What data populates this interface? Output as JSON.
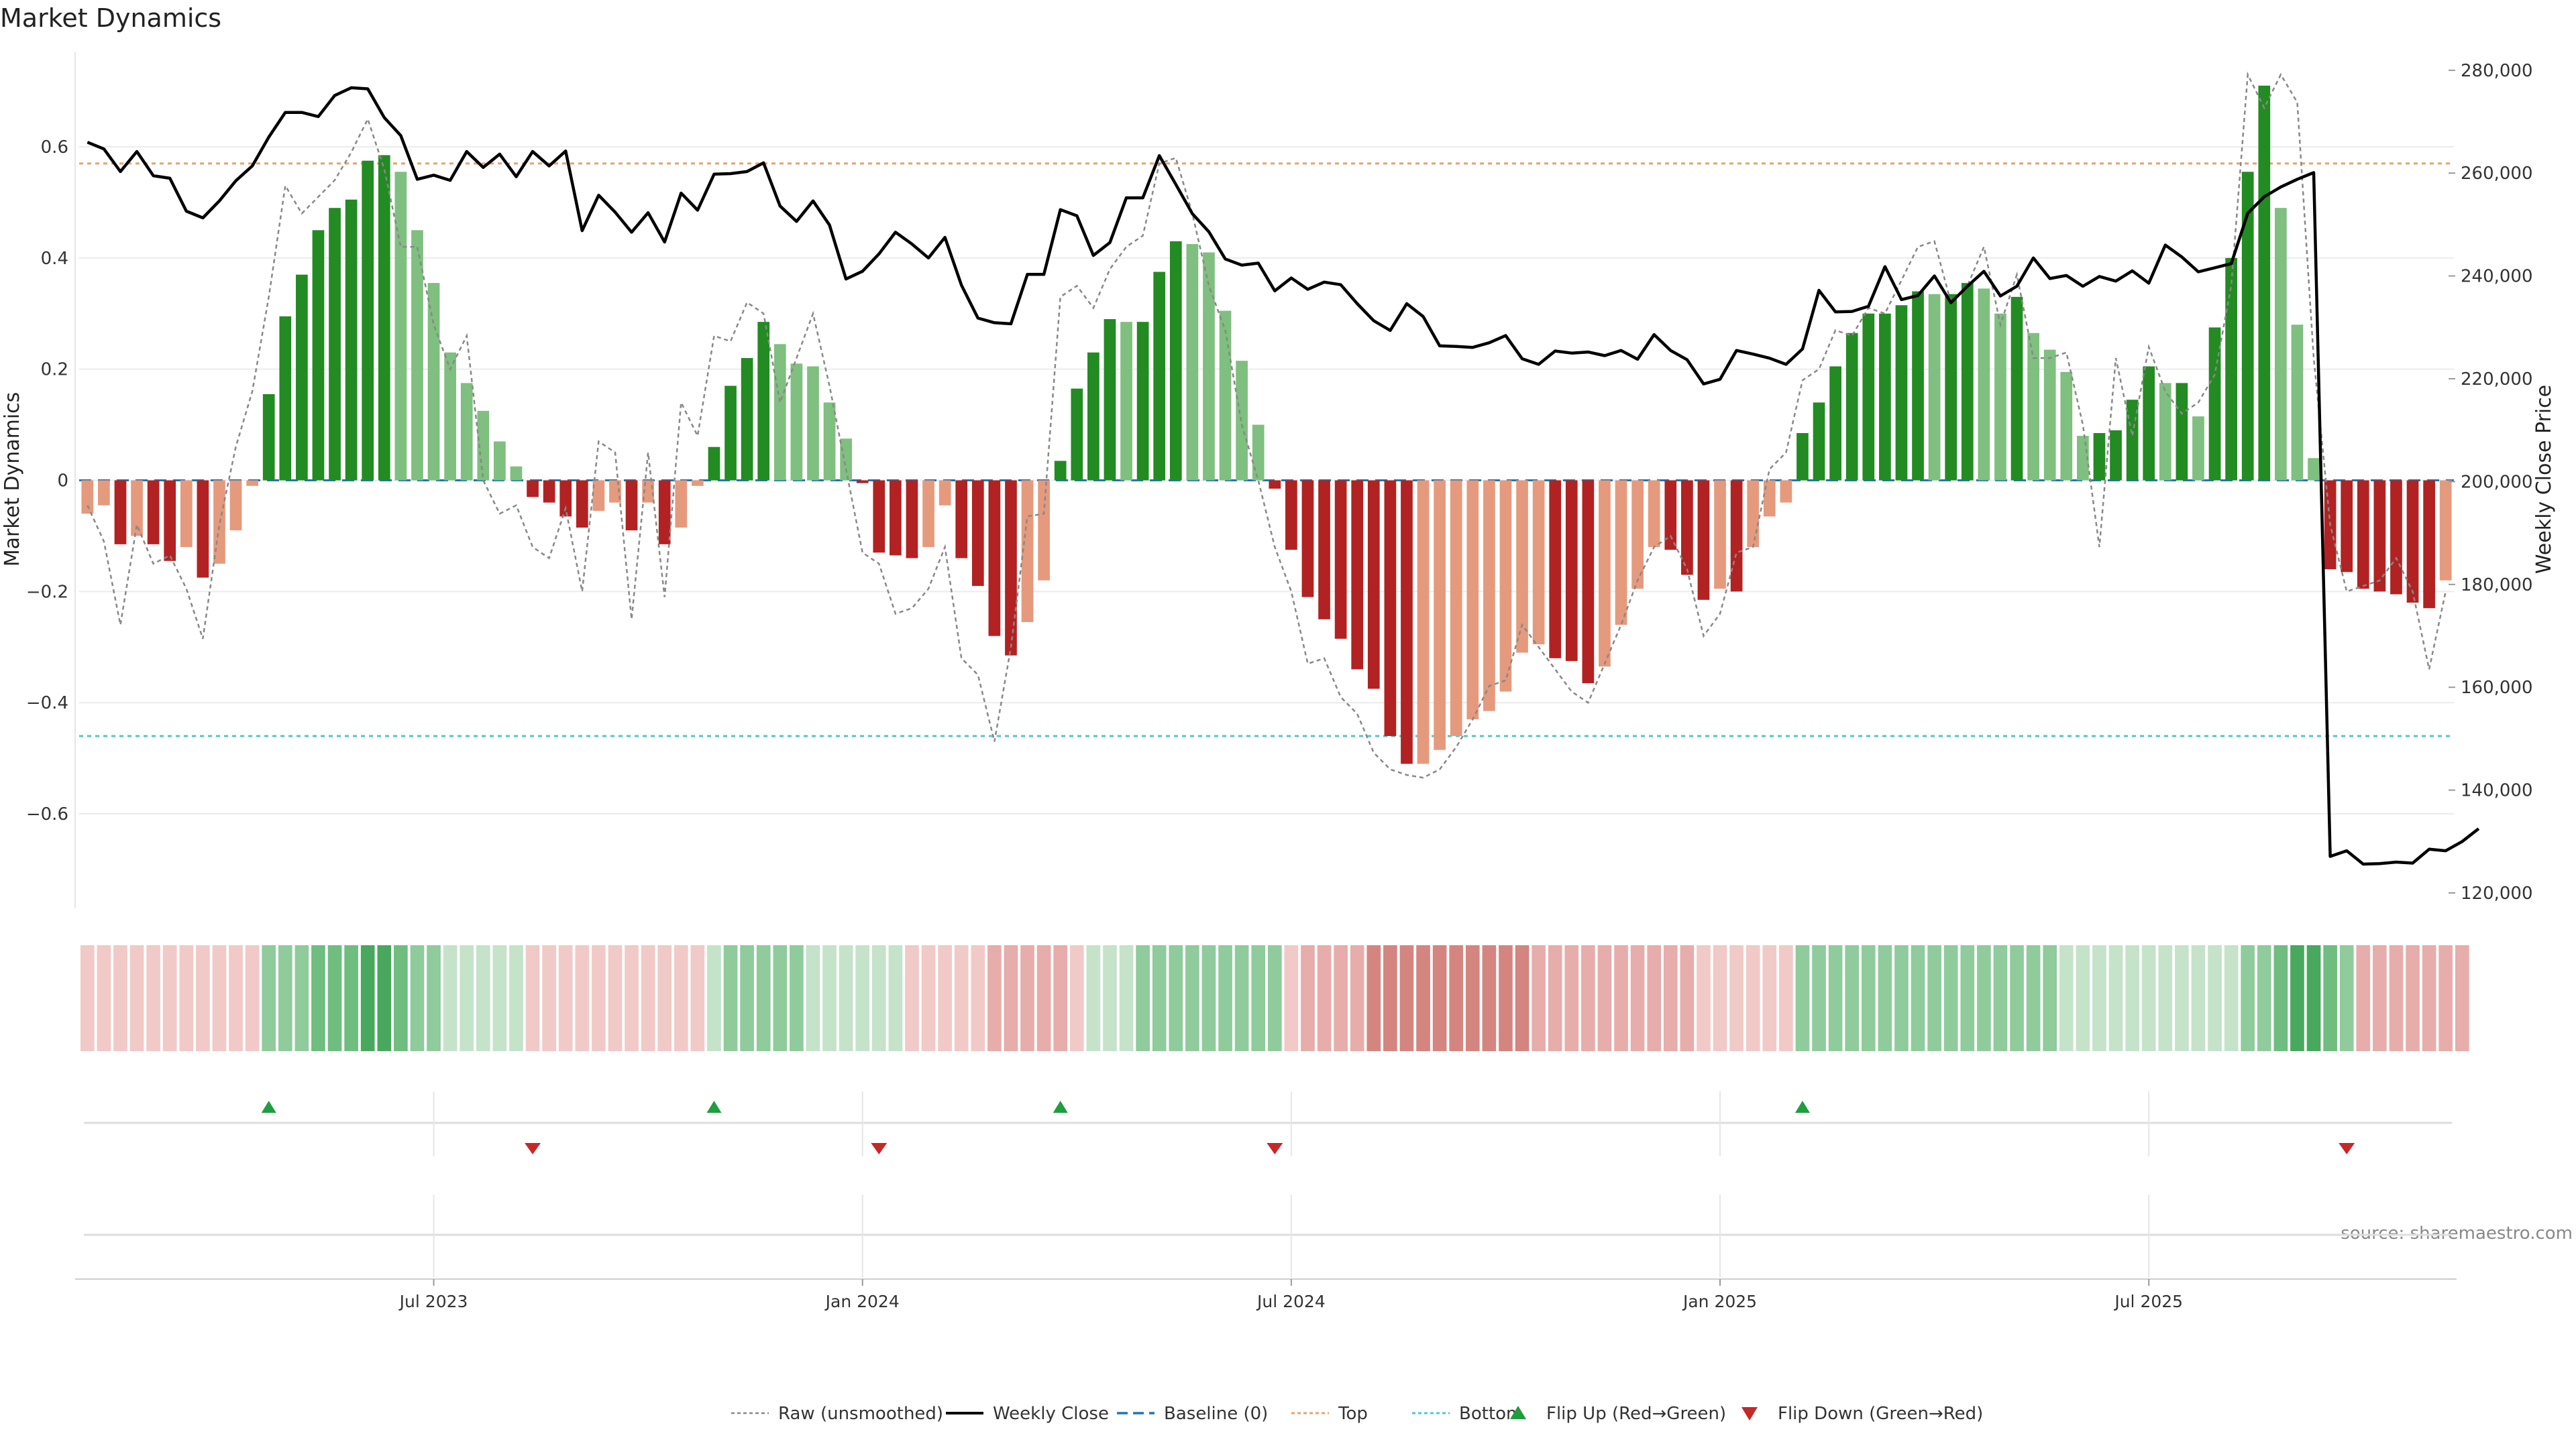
{
  "chart_data": {
    "type": "bar",
    "title": "Market Dynamics",
    "ylabel_left": "Market Dynamics",
    "ylabel_right": "Weekly Close Price",
    "source": "source: sharemaestro.com",
    "ylim_left": [
      -0.77,
      0.77
    ],
    "yticks_left": [
      {
        "v": 0.6,
        "label": "0.6"
      },
      {
        "v": 0.4,
        "label": "0.4"
      },
      {
        "v": 0.2,
        "label": "0.2"
      },
      {
        "v": 0,
        "label": "0"
      },
      {
        "v": -0.2,
        "label": "−0.2"
      },
      {
        "v": -0.4,
        "label": "−0.4"
      },
      {
        "v": -0.6,
        "label": "−0.6"
      }
    ],
    "ylim_right": [
      117000,
      283500
    ],
    "yticks_right": [
      {
        "v": 280000,
        "label": "280,000"
      },
      {
        "v": 260000,
        "label": "260,000"
      },
      {
        "v": 240000,
        "label": "240,000"
      },
      {
        "v": 220000,
        "label": "220,000"
      },
      {
        "v": 200000,
        "label": "200,000"
      },
      {
        "v": 180000,
        "label": "180,000"
      },
      {
        "v": 160000,
        "label": "160,000"
      },
      {
        "v": 140000,
        "label": "140,000"
      },
      {
        "v": 120000,
        "label": "120,000"
      }
    ],
    "x_ticks": [
      {
        "week": 21.5,
        "label": "Jul 2023"
      },
      {
        "week": 47.5,
        "label": "Jan 2024"
      },
      {
        "week": 73.5,
        "label": "Jul 2024"
      },
      {
        "week": 99.5,
        "label": "Jan 2025"
      },
      {
        "week": 125.5,
        "label": "Jul 2025"
      }
    ],
    "top_level": 0.57,
    "bottom_level": -0.46,
    "colors": {
      "strong_green": "#228b22",
      "light_green": "#7fbf7f",
      "strong_red": "#b22222",
      "light_red": "#e59a7d",
      "price": "#000000",
      "raw": "#888888",
      "baseline": "#1f77b4",
      "top": "#e3a36b",
      "bottom": "#4cc8c8",
      "flip_up": "#1e9e3e",
      "flip_down": "#c62828"
    },
    "series": [
      {
        "name": "Market Dynamics",
        "values": [
          -0.06,
          -0.045,
          -0.115,
          -0.1,
          -0.115,
          -0.145,
          -0.12,
          -0.175,
          -0.15,
          -0.09,
          -0.01,
          0.155,
          0.295,
          0.37,
          0.45,
          0.49,
          0.505,
          0.575,
          0.585,
          0.555,
          0.45,
          0.355,
          0.23,
          0.175,
          0.125,
          0.07,
          0.025,
          -0.03,
          -0.04,
          -0.065,
          -0.085,
          -0.055,
          -0.04,
          -0.09,
          -0.04,
          -0.115,
          -0.085,
          -0.01,
          0.06,
          0.17,
          0.22,
          0.285,
          0.245,
          0.21,
          0.205,
          0.14,
          0.075,
          -0.005,
          -0.13,
          -0.135,
          -0.14,
          -0.12,
          -0.045,
          -0.14,
          -0.19,
          -0.28,
          -0.315,
          -0.255,
          -0.18,
          0.035,
          0.165,
          0.23,
          0.29,
          0.285,
          0.285,
          0.375,
          0.43,
          0.425,
          0.41,
          0.305,
          0.215,
          0.1,
          -0.015,
          -0.125,
          -0.21,
          -0.25,
          -0.285,
          -0.34,
          -0.375,
          -0.46,
          -0.51,
          -0.51,
          -0.485,
          -0.46,
          -0.43,
          -0.415,
          -0.38,
          -0.31,
          -0.295,
          -0.32,
          -0.325,
          -0.365,
          -0.335,
          -0.26,
          -0.195,
          -0.12,
          -0.125,
          -0.17,
          -0.215,
          -0.195,
          -0.2,
          -0.12,
          -0.065,
          -0.04,
          0.085,
          0.14,
          0.205,
          0.265,
          0.3,
          0.3,
          0.315,
          0.34,
          0.335,
          0.335,
          0.355,
          0.345,
          0.3,
          0.33,
          0.265,
          0.235,
          0.195,
          0.08,
          0.085,
          0.09,
          0.145,
          0.205,
          0.175,
          0.175,
          0.115,
          0.275,
          0.4,
          0.555,
          0.71,
          0.49,
          0.28,
          0.04,
          -0.16,
          -0.165,
          -0.195,
          -0.2,
          -0.205,
          -0.22,
          -0.23,
          -0.18
        ]
      },
      {
        "name": "Raw (unsmoothed)",
        "values": [
          -0.045,
          -0.11,
          -0.26,
          -0.08,
          -0.15,
          -0.135,
          -0.195,
          -0.285,
          -0.08,
          0.06,
          0.16,
          0.33,
          0.53,
          0.48,
          0.51,
          0.54,
          0.59,
          0.65,
          0.56,
          0.42,
          0.42,
          0.28,
          0.2,
          0.26,
          0.0,
          -0.06,
          -0.045,
          -0.12,
          -0.14,
          -0.05,
          -0.2,
          0.07,
          0.05,
          -0.25,
          0.05,
          -0.21,
          0.14,
          0.08,
          0.26,
          0.25,
          0.32,
          0.3,
          0.14,
          0.22,
          0.3,
          0.17,
          0.02,
          -0.13,
          -0.15,
          -0.24,
          -0.23,
          -0.195,
          -0.12,
          -0.32,
          -0.35,
          -0.47,
          -0.3,
          -0.065,
          -0.06,
          0.33,
          0.35,
          0.31,
          0.38,
          0.42,
          0.44,
          0.57,
          0.58,
          0.48,
          0.35,
          0.27,
          0.1,
          0.0,
          -0.12,
          -0.2,
          -0.33,
          -0.32,
          -0.39,
          -0.42,
          -0.49,
          -0.52,
          -0.53,
          -0.535,
          -0.52,
          -0.48,
          -0.43,
          -0.37,
          -0.36,
          -0.26,
          -0.3,
          -0.34,
          -0.38,
          -0.4,
          -0.33,
          -0.26,
          -0.18,
          -0.12,
          -0.1,
          -0.16,
          -0.28,
          -0.24,
          -0.13,
          -0.12,
          0.02,
          0.05,
          0.18,
          0.2,
          0.27,
          0.26,
          0.31,
          0.3,
          0.36,
          0.42,
          0.43,
          0.32,
          0.35,
          0.42,
          0.28,
          0.37,
          0.22,
          0.22,
          0.23,
          0.1,
          -0.12,
          0.22,
          0.08,
          0.24,
          0.16,
          0.12,
          0.14,
          0.19,
          0.35,
          0.73,
          0.67,
          0.73,
          0.68,
          0.22,
          -0.08,
          -0.2,
          -0.19,
          -0.18,
          -0.14,
          -0.2,
          -0.34,
          -0.2
        ]
      },
      {
        "name": "Weekly Close",
        "values": [
          266000,
          264700,
          260300,
          264200,
          259500,
          259000,
          252600,
          251300,
          254600,
          258500,
          261400,
          267000,
          271800,
          271800,
          271000,
          275100,
          276600,
          276400,
          270800,
          267300,
          258800,
          259600,
          258600,
          264200,
          261100,
          263700,
          259300,
          264200,
          261400,
          264300,
          248800,
          255700,
          252400,
          248500,
          252300,
          246600,
          256100,
          252800,
          259800,
          259900,
          260300,
          262000,
          253600,
          250600,
          254600,
          249900,
          239400,
          240900,
          244300,
          248500,
          246200,
          243500,
          247500,
          238200,
          231800,
          230900,
          230700,
          240300,
          240300,
          252900,
          251700,
          244000,
          246500,
          255200,
          255200,
          263400,
          257800,
          252100,
          248600,
          243300,
          242100,
          242500,
          237100,
          239600,
          237400,
          238800,
          238300,
          234600,
          231300,
          229400,
          234600,
          232100,
          226400,
          226300,
          226100,
          227000,
          228400,
          223900,
          222800,
          225400,
          225000,
          225200,
          224500,
          225500,
          223800,
          228600,
          225500,
          223700,
          219000,
          219900,
          225500,
          224800,
          224000,
          222800,
          225800,
          237200,
          233000,
          233100,
          234100,
          241800,
          235400,
          236200,
          240000,
          234800,
          238000,
          240900,
          236100,
          238000,
          243500,
          239500,
          240100,
          238000,
          239900,
          239000,
          241000,
          238600,
          246000,
          243700,
          240800,
          241600,
          242400,
          252200,
          255400,
          257300,
          258800,
          260100,
          127100,
          128200,
          125600,
          125700,
          126000,
          125800,
          128500,
          128200,
          130000,
          132500
        ]
      }
    ],
    "strip": [
      "r1",
      "r1",
      "r1",
      "r1",
      "r1",
      "r1",
      "r1",
      "r1",
      "r1",
      "r1",
      "r1",
      "g2",
      "g2",
      "g2",
      "g3",
      "g3",
      "g3",
      "g4",
      "g4",
      "g3",
      "g2",
      "g2",
      "g1",
      "g1",
      "g1",
      "g1",
      "g1",
      "r1",
      "r1",
      "r1",
      "r1",
      "r1",
      "r1",
      "r1",
      "r1",
      "r1",
      "r1",
      "r1",
      "g1",
      "g2",
      "g2",
      "g2",
      "g2",
      "g2",
      "g1",
      "g1",
      "g1",
      "g1",
      "g1",
      "g1",
      "r1",
      "r1",
      "r1",
      "r1",
      "r1",
      "r2",
      "r2",
      "r2",
      "r2",
      "r2",
      "r1",
      "g1",
      "g1",
      "g1",
      "g2",
      "g2",
      "g2",
      "g2",
      "g2",
      "g2",
      "g2",
      "g2",
      "g2",
      "r1",
      "r2",
      "r2",
      "r2",
      "r2",
      "r3",
      "r3",
      "r3",
      "r3",
      "r3",
      "r3",
      "r3",
      "r3",
      "r3",
      "r3",
      "r2",
      "r2",
      "r2",
      "r2",
      "r2",
      "r2",
      "r2",
      "r2",
      "r2",
      "r2",
      "r1",
      "r1",
      "r1",
      "r1",
      "r1",
      "r1",
      "g2",
      "g2",
      "g2",
      "g2",
      "g2",
      "g2",
      "g2",
      "g2",
      "g2",
      "g2",
      "g2",
      "g2",
      "g2",
      "g2",
      "g2",
      "g2",
      "g1",
      "g1",
      "g1",
      "g1",
      "g1",
      "g1",
      "g1",
      "g1",
      "g1",
      "g1",
      "g1",
      "g2",
      "g2",
      "g3",
      "g4",
      "g4",
      "g3",
      "g2",
      "r2",
      "r2",
      "r2",
      "r2",
      "r2",
      "r2",
      "r2"
    ],
    "flip_up_weeks": [
      11,
      38,
      59,
      104
    ],
    "flip_down_weeks": [
      27,
      48,
      72,
      137
    ],
    "legend": [
      {
        "key": "raw",
        "label": "Raw (unsmoothed)"
      },
      {
        "key": "price",
        "label": "Weekly Close"
      },
      {
        "key": "baseline",
        "label": "Baseline (0)"
      },
      {
        "key": "top",
        "label": "Top"
      },
      {
        "key": "bottom",
        "label": "Bottom"
      },
      {
        "key": "up",
        "label": "Flip Up (Red→Green)"
      },
      {
        "key": "down",
        "label": "Flip Down (Green→Red)"
      }
    ]
  }
}
